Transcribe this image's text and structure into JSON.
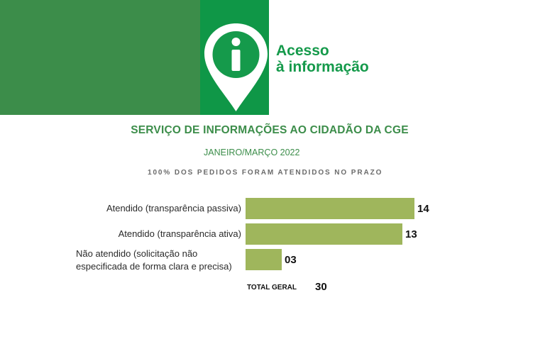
{
  "colors": {
    "banner_dark": "#3c8d4a",
    "banner_green": "#0f9747",
    "logo_green": "#159a4b",
    "bar": "#9fb65c"
  },
  "logo": {
    "icon": "info-pin-icon",
    "line1": "Acesso",
    "line2": "à informação"
  },
  "header": {
    "title": "SERVIÇO DE INFORMAÇÕES AO CIDADÃO DA CGE",
    "period": "JANEIRO/MARÇO 2022",
    "note": "100% DOS PEDIDOS FORAM ATENDIDOS NO PRAZO"
  },
  "chart_data": {
    "type": "bar",
    "orientation": "horizontal",
    "title": "",
    "categories": [
      [
        "Atendido (transparência passiva)"
      ],
      [
        "Atendido (transparência ativa)"
      ],
      [
        "Não atendido (solicitação não",
        "especificada de forma clara e precisa)"
      ]
    ],
    "values": [
      14,
      13,
      3
    ],
    "value_labels": [
      "14",
      "13",
      "03"
    ],
    "xlim": [
      0,
      14
    ],
    "grid": false,
    "legend": "none"
  },
  "total": {
    "label": "TOTAL GERAL",
    "value": "30"
  }
}
